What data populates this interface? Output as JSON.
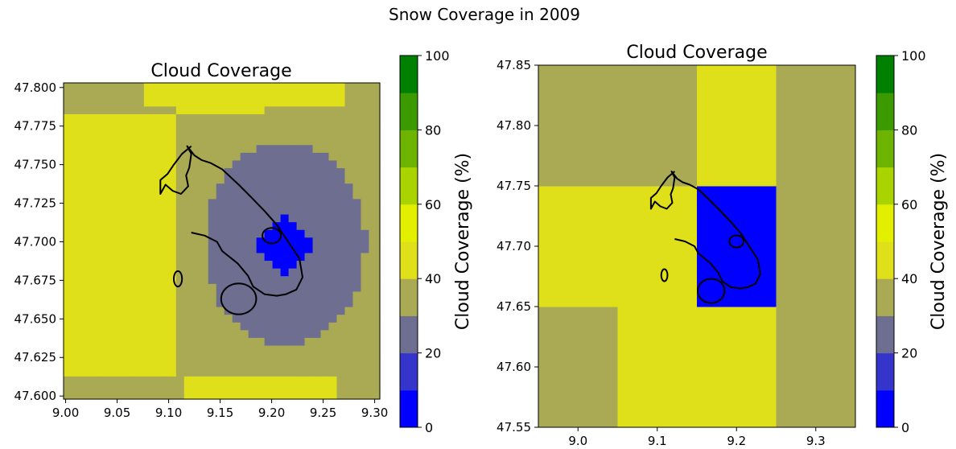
{
  "figure": {
    "title": "Snow Coverage in 2009"
  },
  "chart_data": [
    {
      "type": "heatmap",
      "title": "Cloud Coverage",
      "xlabel": "",
      "ylabel": "",
      "xlim": [
        8.998,
        9.305
      ],
      "ylim": [
        47.598,
        47.803
      ],
      "x_ticks": [
        9.0,
        9.05,
        9.1,
        9.15,
        9.2,
        9.25,
        9.3
      ],
      "x_tick_labels": [
        "9.00",
        "9.05",
        "9.10",
        "9.15",
        "9.20",
        "9.25",
        "9.30"
      ],
      "y_ticks": [
        47.6,
        47.625,
        47.65,
        47.675,
        47.7,
        47.725,
        47.75,
        47.775,
        47.8
      ],
      "y_tick_labels": [
        "47.600",
        "47.625",
        "47.650",
        "47.675",
        "47.700",
        "47.725",
        "47.750",
        "47.775",
        "47.800"
      ],
      "grid_resolution_deg": [
        0.0078,
        0.005
      ],
      "regions": [
        {
          "name": "outer-frame",
          "value": 35
        },
        {
          "name": "west-band",
          "value": 45
        },
        {
          "name": "lake-surround",
          "value": 25
        },
        {
          "name": "lake-center",
          "value": 5
        }
      ],
      "colorbar": {
        "label": "Cloud Coverage (%)",
        "min": 0,
        "max": 100,
        "ticks": [
          0,
          20,
          40,
          60,
          80,
          100
        ],
        "tick_labels": [
          "0",
          "20",
          "40",
          "60",
          "80",
          "100"
        ]
      }
    },
    {
      "type": "heatmap",
      "title": "Cloud Coverage",
      "xlabel": "",
      "ylabel": "",
      "xlim": [
        8.95,
        9.35
      ],
      "ylim": [
        47.55,
        47.85
      ],
      "x_ticks": [
        9.0,
        9.1,
        9.2,
        9.3
      ],
      "x_tick_labels": [
        "9.0",
        "9.1",
        "9.2",
        "9.3"
      ],
      "y_ticks": [
        47.55,
        47.6,
        47.65,
        47.7,
        47.75,
        47.8,
        47.85
      ],
      "y_tick_labels": [
        "47.55",
        "47.60",
        "47.65",
        "47.70",
        "47.75",
        "47.80",
        "47.85"
      ],
      "x_edges": [
        8.95,
        9.05,
        9.15,
        9.25,
        9.35
      ],
      "y_edges": [
        47.55,
        47.65,
        47.75,
        47.85
      ],
      "cells": [
        [
          35,
          45,
          45,
          35
        ],
        [
          45,
          45,
          5,
          35
        ],
        [
          35,
          35,
          45,
          35
        ]
      ],
      "colorbar": {
        "label": "Cloud Coverage (%)",
        "min": 0,
        "max": 100,
        "ticks": [
          0,
          20,
          40,
          60,
          80,
          100
        ],
        "tick_labels": [
          "0",
          "20",
          "40",
          "60",
          "80",
          "100"
        ]
      }
    }
  ],
  "colormap": {
    "bounds": [
      0,
      10,
      20,
      30,
      40,
      50,
      60,
      70,
      80,
      90,
      100
    ],
    "colors": [
      "#0000ff",
      "#3535cc",
      "#6e6e90",
      "#aaaa55",
      "#e0e01a",
      "#e2f000",
      "#aad400",
      "#6cb400",
      "#3a9a00",
      "#008000"
    ]
  },
  "outline": {
    "lon": [
      9.122,
      9.135,
      9.147,
      9.152,
      9.167,
      9.177,
      9.182,
      9.193,
      9.205,
      9.214,
      9.224,
      9.23,
      9.227,
      9.215,
      9.205,
      9.193,
      9.18,
      9.168,
      9.152,
      9.141,
      9.132,
      9.125,
      9.118,
      9.122,
      9.12,
      9.117,
      9.119,
      9.112,
      9.104,
      9.097,
      9.092,
      9.092,
      9.099,
      9.105,
      9.113,
      9.122
    ],
    "lat": [
      47.706,
      47.704,
      47.7,
      47.694,
      47.686,
      47.678,
      47.671,
      47.666,
      47.665,
      47.666,
      47.669,
      47.677,
      47.689,
      47.701,
      47.711,
      47.72,
      47.729,
      47.737,
      47.747,
      47.751,
      47.753,
      47.756,
      47.762,
      47.757,
      47.748,
      47.743,
      47.736,
      47.731,
      47.733,
      47.737,
      47.731,
      47.74,
      47.744,
      47.75,
      47.757,
      47.762
    ]
  }
}
